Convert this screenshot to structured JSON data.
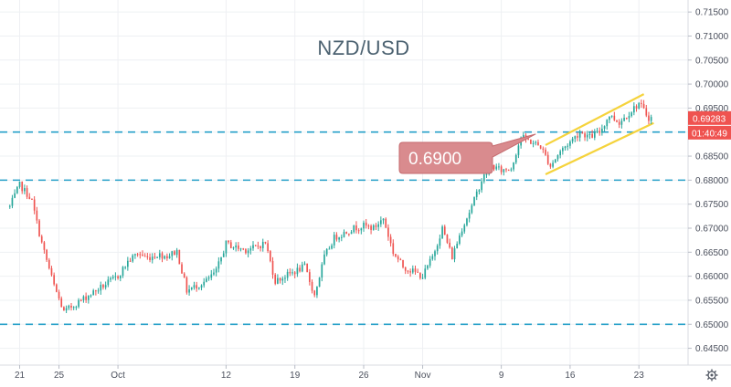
{
  "chart_data": {
    "type": "candlestick",
    "title": "NZD/USD",
    "symbol": "NZD/USD",
    "y_axis": {
      "range": [
        0.6415,
        0.7175
      ],
      "ticks": [
        "0.71500",
        "0.71000",
        "0.70500",
        "0.70000",
        "0.69500",
        "0.69000",
        "0.68500",
        "0.68000",
        "0.67500",
        "0.67000",
        "0.66500",
        "0.66000",
        "0.65500",
        "0.65000",
        "0.64500"
      ],
      "position": "right"
    },
    "x_axis": {
      "ticks": [
        {
          "label": "21",
          "day": 0
        },
        {
          "label": "25",
          "day": 4
        },
        {
          "label": "Oct",
          "day": 10
        },
        {
          "label": "12",
          "day": 21
        },
        {
          "label": "19",
          "day": 28
        },
        {
          "label": "26",
          "day": 35
        },
        {
          "label": "Nov",
          "day": 41
        },
        {
          "label": "9",
          "day": 49
        },
        {
          "label": "16",
          "day": 56
        },
        {
          "label": "23",
          "day": 63
        }
      ],
      "range": [
        -2,
        68
      ]
    },
    "horizontal_lines": [
      {
        "value": 0.69,
        "style": "dashed",
        "color": "#26a0c8"
      },
      {
        "value": 0.68,
        "style": "dashed",
        "color": "#26a0c8"
      },
      {
        "value": 0.65,
        "style": "dashed",
        "color": "#26a0c8"
      }
    ],
    "channel": {
      "color": "#f5d33c",
      "upper": [
        [
          53.5,
          0.6873
        ],
        [
          63.5,
          0.6979
        ]
      ],
      "lower": [
        [
          53.5,
          0.6812
        ],
        [
          64.5,
          0.6919
        ]
      ]
    },
    "callout": {
      "text": "0.6900",
      "pointer_to": [
        52.5,
        0.6896
      ]
    },
    "last_price": {
      "value": 0.69283,
      "label": "0.69283",
      "countdown": "01:40:49",
      "color": "#ef5350"
    },
    "candle_colors": {
      "up": "#26a69a",
      "down": "#ef5350"
    },
    "anchors": [
      [
        -1,
        0.6745
      ],
      [
        0,
        0.679
      ],
      [
        1.2,
        0.676
      ],
      [
        2.2,
        0.6672
      ],
      [
        3.5,
        0.658
      ],
      [
        4.5,
        0.6525
      ],
      [
        5.5,
        0.654
      ],
      [
        7,
        0.656
      ],
      [
        8.5,
        0.658
      ],
      [
        10,
        0.66
      ],
      [
        11,
        0.663
      ],
      [
        12,
        0.6648
      ],
      [
        13,
        0.6638
      ],
      [
        14,
        0.6645
      ],
      [
        15,
        0.6642
      ],
      [
        16,
        0.6652
      ],
      [
        17,
        0.657
      ],
      [
        18,
        0.658
      ],
      [
        19,
        0.659
      ],
      [
        20,
        0.661
      ],
      [
        21,
        0.6668
      ],
      [
        22,
        0.666
      ],
      [
        23,
        0.6655
      ],
      [
        24,
        0.666
      ],
      [
        25,
        0.667
      ],
      [
        26,
        0.659
      ],
      [
        27,
        0.66
      ],
      [
        28,
        0.661
      ],
      [
        29,
        0.662
      ],
      [
        30,
        0.656
      ],
      [
        31,
        0.664
      ],
      [
        32,
        0.668
      ],
      [
        33,
        0.669
      ],
      [
        34,
        0.67
      ],
      [
        35,
        0.6705
      ],
      [
        36,
        0.67
      ],
      [
        37,
        0.672
      ],
      [
        38,
        0.665
      ],
      [
        39,
        0.662
      ],
      [
        40,
        0.661
      ],
      [
        41,
        0.66
      ],
      [
        42,
        0.664
      ],
      [
        43,
        0.67
      ],
      [
        44,
        0.664
      ],
      [
        45,
        0.67
      ],
      [
        46,
        0.6745
      ],
      [
        47,
        0.68
      ],
      [
        48,
        0.683
      ],
      [
        49,
        0.682
      ],
      [
        50,
        0.6825
      ],
      [
        51,
        0.689
      ],
      [
        52,
        0.688
      ],
      [
        53,
        0.687
      ],
      [
        54,
        0.683
      ],
      [
        55,
        0.686
      ],
      [
        56,
        0.688
      ],
      [
        57,
        0.69
      ],
      [
        58,
        0.689
      ],
      [
        59,
        0.69
      ],
      [
        60,
        0.6935
      ],
      [
        61,
        0.692
      ],
      [
        62,
        0.694
      ],
      [
        63,
        0.696
      ],
      [
        64,
        0.693
      ]
    ]
  }
}
